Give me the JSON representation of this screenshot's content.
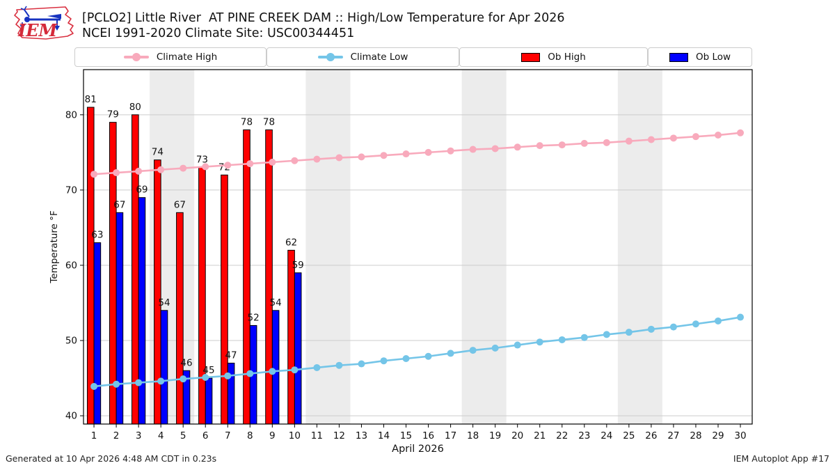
{
  "logo": {
    "text": "IEM"
  },
  "header": {
    "title_line1": "[PCLO2] Little River  AT PINE CREEK DAM :: High/Low Temperature for Apr 2026",
    "title_line2": "NCEI 1991-2020 Climate Site: USC00344451"
  },
  "legend": {
    "items": [
      {
        "label": "Climate High",
        "swatch": "line",
        "color": "#f8aabc"
      },
      {
        "label": "Climate Low",
        "swatch": "line",
        "color": "#74c5e8"
      },
      {
        "label": "Ob High",
        "swatch": "rect",
        "color": "#ff0000"
      },
      {
        "label": "Ob Low",
        "swatch": "rect",
        "color": "#0000ff"
      }
    ]
  },
  "footer": {
    "left": "Generated at 10 Apr 2026 4:48 AM CDT in 0.23s",
    "right": "IEM Autoplot App #17"
  },
  "chart_data": {
    "type": "bar",
    "title": "[PCLO2] Little River  AT PINE CREEK DAM :: High/Low Temperature for Apr 2026",
    "subtitle": "NCEI 1991-2020 Climate Site: USC00344451",
    "xlabel": "April 2026",
    "ylabel": "Temperature °F",
    "days": [
      1,
      2,
      3,
      4,
      5,
      6,
      7,
      8,
      9,
      10,
      11,
      12,
      13,
      14,
      15,
      16,
      17,
      18,
      19,
      20,
      21,
      22,
      23,
      24,
      25,
      26,
      27,
      28,
      29,
      30
    ],
    "xlim": [
      0.53,
      30.53
    ],
    "ylim": [
      38.9,
      86.0
    ],
    "yticks": [
      40,
      50,
      60,
      70,
      80
    ],
    "grid": true,
    "grid_color": "#cccccc",
    "weekend_bands": [
      [
        3.5,
        5.5
      ],
      [
        10.5,
        12.5
      ],
      [
        17.5,
        19.5
      ],
      [
        24.5,
        26.5
      ]
    ],
    "band_color": "#ececec",
    "legend_position": "top row, four boxes",
    "series": [
      {
        "name": "Climate High",
        "type": "line",
        "color": "#f8aabc",
        "values": [
          72.1,
          72.3,
          72.5,
          72.7,
          72.9,
          73.1,
          73.3,
          73.5,
          73.7,
          73.9,
          74.1,
          74.3,
          74.4,
          74.6,
          74.8,
          75.0,
          75.2,
          75.4,
          75.5,
          75.7,
          75.9,
          76.0,
          76.2,
          76.3,
          76.5,
          76.7,
          76.9,
          77.1,
          77.3,
          77.6
        ]
      },
      {
        "name": "Climate Low",
        "type": "line",
        "color": "#74c5e8",
        "values": [
          43.9,
          44.2,
          44.4,
          44.6,
          44.9,
          45.1,
          45.3,
          45.6,
          45.9,
          46.1,
          46.4,
          46.7,
          46.9,
          47.3,
          47.6,
          47.9,
          48.3,
          48.7,
          49.0,
          49.4,
          49.8,
          50.1,
          50.4,
          50.8,
          51.1,
          51.5,
          51.8,
          52.2,
          52.6,
          53.1
        ]
      },
      {
        "name": "Ob High",
        "type": "bar",
        "color": "#ff0000",
        "days": [
          1,
          2,
          3,
          4,
          5,
          6,
          7,
          8,
          9,
          10
        ],
        "values": [
          81,
          79,
          80,
          74,
          67,
          73,
          72,
          78,
          78,
          62
        ]
      },
      {
        "name": "Ob Low",
        "type": "bar",
        "color": "#0000ff",
        "days": [
          1,
          2,
          3,
          4,
          5,
          6,
          7,
          8,
          9,
          10
        ],
        "values": [
          63,
          67,
          69,
          54,
          46,
          45,
          47,
          52,
          54,
          59
        ]
      }
    ]
  }
}
